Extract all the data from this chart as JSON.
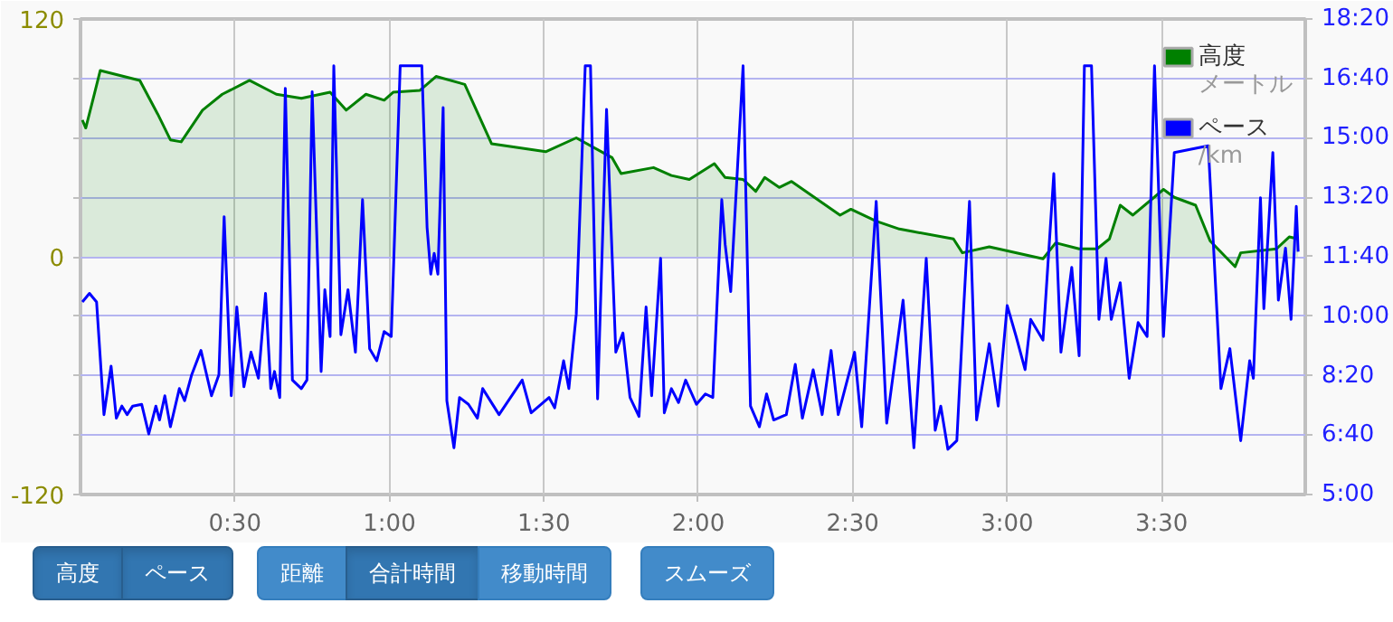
{
  "chart_data": {
    "type": "line",
    "xlim": [
      0,
      3.965
    ],
    "xticks": [
      {
        "value": 0.5,
        "label": "0:30"
      },
      {
        "value": 1.0,
        "label": "1:00"
      },
      {
        "value": 1.5,
        "label": "1:30"
      },
      {
        "value": 2.0,
        "label": "2:00"
      },
      {
        "value": 2.5,
        "label": "2:30"
      },
      {
        "value": 3.0,
        "label": "3:00"
      },
      {
        "value": 3.5,
        "label": "3:30"
      }
    ],
    "ylim": [
      -120,
      120
    ],
    "yticks": [
      -120,
      {
        "value": -90,
        "label": null
      },
      {
        "value": -60,
        "label": null
      },
      {
        "value": -30,
        "label": null
      },
      0,
      {
        "value": 30,
        "label": null
      },
      {
        "value": 60,
        "label": null
      },
      {
        "value": 90,
        "label": null
      },
      120
    ],
    "y2lim": [
      5,
      18.333
    ],
    "y2ticks": [
      {
        "value": 5,
        "label": "5:00"
      },
      {
        "value": 6.667,
        "label": "6:40"
      },
      {
        "value": 8.333,
        "label": "8:20"
      },
      {
        "value": 10,
        "label": "10:00"
      },
      {
        "value": 11.667,
        "label": "11:40"
      },
      {
        "value": 13.333,
        "label": "13:20"
      },
      {
        "value": 15,
        "label": "15:00"
      },
      {
        "value": 16.667,
        "label": "16:40"
      },
      {
        "value": 18.333,
        "label": "18:20"
      }
    ],
    "grid": true,
    "legend": "top right",
    "annotations": [
      "メートル",
      "/km",
      "高度",
      "ペース",
      "距離",
      "合計時間",
      "移動時間",
      "スムーズ"
    ],
    "series": [
      {
        "name": "高度",
        "type": "area",
        "color": "#008000",
        "x": [
          0.006,
          0.017,
          0.035,
          0.064,
          0.192,
          0.25,
          0.291,
          0.326,
          0.395,
          0.459,
          0.547,
          0.634,
          0.715,
          0.808,
          0.86,
          0.924,
          0.983,
          1.012,
          1.099,
          1.151,
          1.244,
          1.331,
          1.506,
          1.605,
          1.721,
          1.75,
          1.855,
          1.913,
          1.971,
          2.052,
          2.087,
          2.145,
          2.186,
          2.215,
          2.262,
          2.302,
          2.459,
          2.494,
          2.576,
          2.651,
          2.826,
          2.855,
          2.942,
          3.116,
          3.157,
          3.233,
          3.291,
          3.331,
          3.366,
          3.407,
          3.506,
          3.541,
          3.61,
          3.657,
          3.738,
          3.756,
          3.872,
          3.913,
          3.942
        ],
        "values": [
          69,
          65,
          76,
          94,
          89,
          72,
          59,
          58,
          74,
          82,
          89,
          82,
          80,
          83,
          74,
          82,
          79,
          83,
          84,
          91,
          87,
          57,
          53,
          60,
          50,
          42,
          45,
          41,
          39,
          47,
          40,
          39,
          33,
          40,
          35,
          38,
          21,
          24,
          18,
          14,
          9,
          2,
          5,
          -1,
          7,
          4,
          4,
          9,
          26,
          21,
          34,
          30,
          26,
          8,
          -5,
          2,
          4,
          10,
          9
        ]
      },
      {
        "name": "ペース",
        "axis": "y2",
        "color": "#0000ff",
        "x": [
          0.006,
          0.029,
          0.052,
          0.076,
          0.099,
          0.116,
          0.134,
          0.151,
          0.169,
          0.198,
          0.221,
          0.244,
          0.256,
          0.273,
          0.291,
          0.32,
          0.337,
          0.36,
          0.39,
          0.424,
          0.448,
          0.465,
          0.488,
          0.506,
          0.529,
          0.552,
          0.576,
          0.599,
          0.616,
          0.628,
          0.645,
          0.663,
          0.686,
          0.715,
          0.733,
          0.75,
          0.779,
          0.791,
          0.808,
          0.82,
          0.843,
          0.866,
          0.89,
          0.913,
          0.936,
          0.959,
          0.983,
          1.006,
          1.035,
          1.105,
          1.122,
          1.134,
          1.145,
          1.157,
          1.174,
          1.186,
          1.209,
          1.227,
          1.256,
          1.285,
          1.302,
          1.355,
          1.43,
          1.459,
          1.517,
          1.535,
          1.564,
          1.581,
          1.605,
          1.634,
          1.651,
          1.674,
          1.703,
          1.733,
          1.756,
          1.779,
          1.808,
          1.831,
          1.849,
          1.878,
          1.89,
          1.913,
          1.936,
          1.959,
          1.994,
          2.023,
          2.047,
          2.076,
          2.087,
          2.105,
          2.145,
          2.169,
          2.198,
          2.221,
          2.244,
          2.285,
          2.314,
          2.337,
          2.372,
          2.401,
          2.43,
          2.453,
          2.506,
          2.529,
          2.576,
          2.61,
          2.663,
          2.698,
          2.738,
          2.767,
          2.785,
          2.808,
          2.837,
          2.855,
          2.878,
          2.901,
          2.942,
          2.971,
          3.0,
          3.029,
          3.058,
          3.076,
          3.116,
          3.151,
          3.174,
          3.209,
          3.233,
          3.25,
          3.273,
          3.297,
          3.32,
          3.337,
          3.366,
          3.395,
          3.424,
          3.453,
          3.477,
          3.506,
          3.541,
          3.651,
          3.692,
          3.721,
          3.756,
          3.785,
          3.797,
          3.82,
          3.831,
          3.86,
          3.878,
          3.901,
          3.919,
          3.936,
          3.942
        ],
        "values": [
          10.4,
          10.64,
          10.4,
          7.24,
          8.6,
          7.14,
          7.48,
          7.24,
          7.48,
          7.53,
          6.7,
          7.48,
          7.09,
          7.77,
          6.9,
          7.97,
          7.63,
          8.36,
          9.04,
          7.77,
          8.36,
          12.79,
          7.77,
          10.26,
          8.02,
          8.99,
          8.26,
          10.64,
          7.97,
          8.45,
          7.72,
          16.39,
          8.21,
          7.97,
          8.21,
          16.29,
          8.45,
          10.74,
          9.43,
          17.02,
          9.48,
          10.74,
          8.99,
          13.27,
          9.09,
          8.75,
          9.57,
          9.43,
          17.02,
          17.02,
          12.49,
          11.18,
          11.76,
          11.18,
          15.85,
          7.63,
          6.31,
          7.72,
          7.53,
          7.14,
          7.97,
          7.24,
          8.21,
          7.29,
          7.72,
          7.43,
          8.75,
          7.97,
          10.06,
          17.02,
          17.02,
          7.68,
          15.8,
          8.99,
          9.53,
          7.72,
          7.19,
          10.26,
          7.77,
          11.62,
          7.29,
          7.97,
          7.58,
          8.21,
          7.53,
          7.82,
          7.72,
          13.27,
          12.01,
          10.69,
          17.02,
          7.48,
          6.9,
          7.82,
          7.09,
          7.24,
          8.65,
          7.14,
          8.5,
          7.24,
          9.04,
          7.24,
          8.99,
          6.9,
          13.22,
          7.0,
          10.45,
          6.31,
          11.62,
          6.8,
          7.48,
          6.27,
          6.51,
          9.57,
          13.22,
          7.09,
          9.23,
          7.48,
          10.3,
          9.43,
          8.5,
          9.91,
          9.33,
          14.0,
          8.99,
          11.37,
          8.89,
          17.02,
          17.02,
          9.91,
          11.62,
          9.91,
          10.94,
          8.26,
          9.82,
          9.43,
          17.02,
          9.43,
          14.59,
          14.78,
          7.97,
          9.09,
          6.51,
          8.75,
          8.26,
          13.32,
          10.21,
          14.59,
          10.45,
          11.91,
          9.91,
          13.08,
          11.81
        ]
      }
    ]
  }
}
